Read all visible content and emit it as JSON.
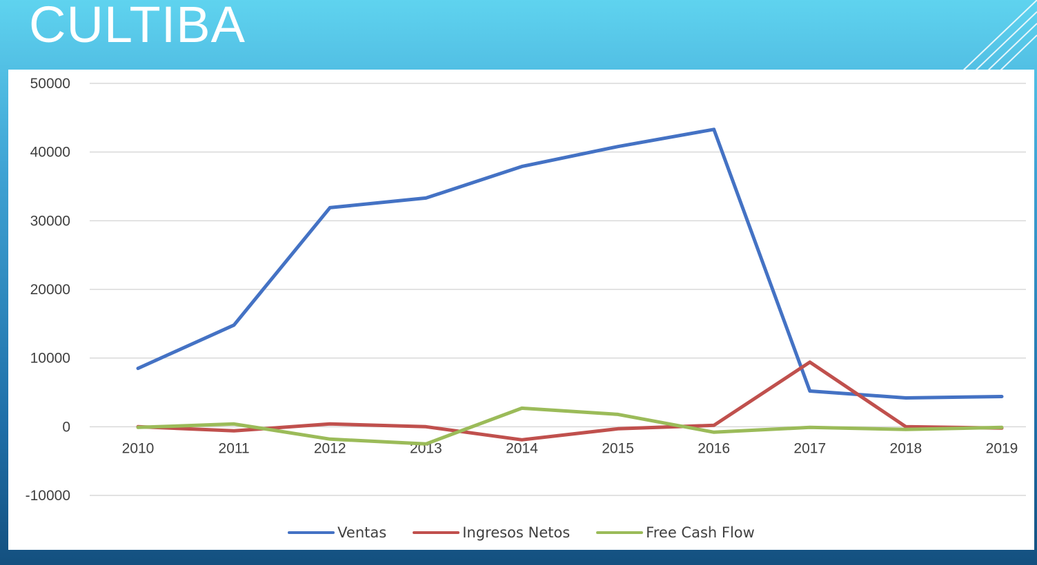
{
  "slide": {
    "title": "CULTIBA"
  },
  "colors": {
    "ventas": "#4472c4",
    "ingresos": "#c0504d",
    "fcf": "#9bbb59",
    "grid": "#d9d9d9",
    "text": "#404040"
  },
  "chart_data": {
    "type": "line",
    "title": "",
    "xlabel": "",
    "ylabel": "",
    "categories": [
      "2010",
      "2011",
      "2012",
      "2013",
      "2014",
      "2015",
      "2016",
      "2017",
      "2018",
      "2019"
    ],
    "y_ticks": [
      "50000",
      "40000",
      "30000",
      "20000",
      "10000",
      "0",
      "-10000"
    ],
    "ylim": [
      -10000,
      50000
    ],
    "grid": true,
    "legend_position": "bottom",
    "series": [
      {
        "name": "Ventas",
        "color": "#4472c4",
        "values": [
          8500,
          14800,
          31900,
          33300,
          37900,
          40800,
          43300,
          5200,
          4200,
          4400
        ]
      },
      {
        "name": "Ingresos Netos",
        "color": "#c0504d",
        "values": [
          0,
          -600,
          400,
          0,
          -1900,
          -300,
          200,
          9400,
          0,
          -200
        ]
      },
      {
        "name": "Free Cash Flow",
        "color": "#9bbb59",
        "values": [
          -100,
          400,
          -1800,
          -2500,
          2700,
          1800,
          -800,
          -100,
          -400,
          -100
        ]
      }
    ]
  }
}
